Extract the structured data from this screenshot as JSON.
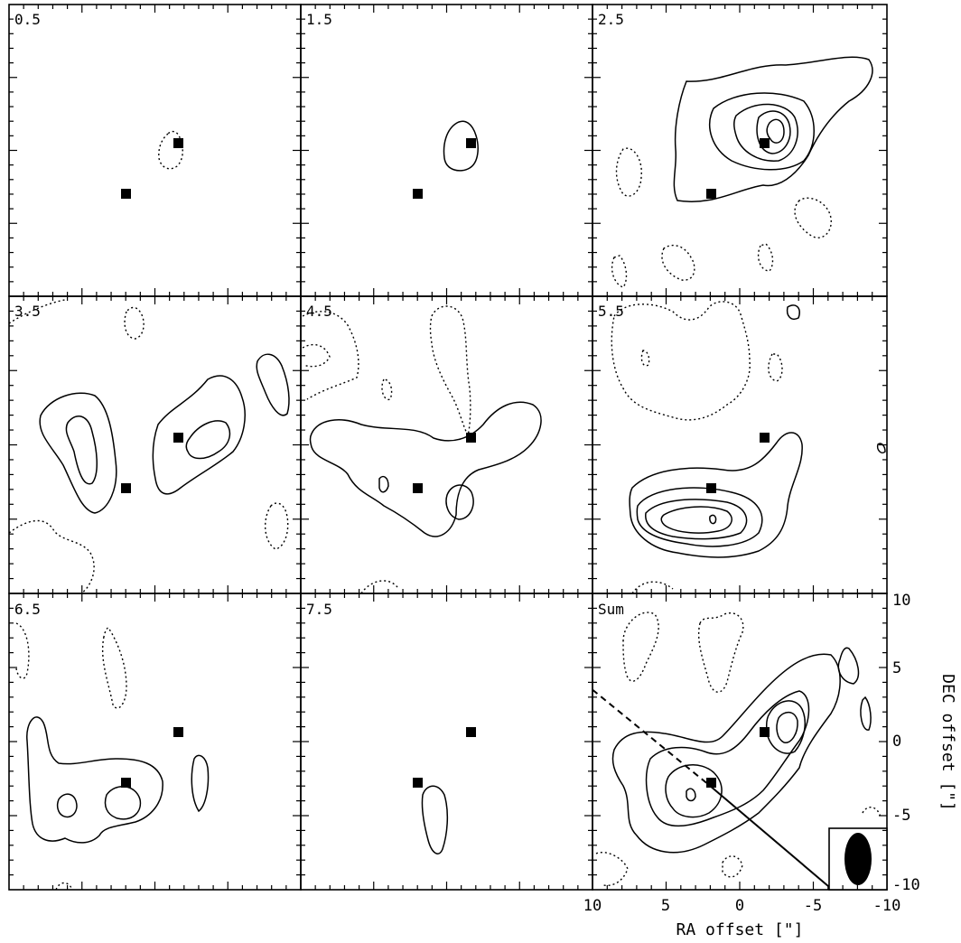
{
  "chart_data": {
    "type": "contour",
    "panels": [
      {
        "label": "0.5"
      },
      {
        "label": "1.5"
      },
      {
        "label": "2.5"
      },
      {
        "label": "3.5"
      },
      {
        "label": "4.5"
      },
      {
        "label": "5.5"
      },
      {
        "label": "6.5"
      },
      {
        "label": "7.5"
      },
      {
        "label": "Sum"
      }
    ],
    "xlabel": "RA offset [\"]",
    "ylabel": "DEC offset [\"]",
    "xlim": [
      10,
      -10
    ],
    "ylim": [
      -10,
      10
    ],
    "x_tick_labels": [
      "10",
      "5",
      "0",
      "-5",
      "-10"
    ],
    "y_tick_labels": [
      "10",
      "5",
      "0",
      "-5",
      "-10"
    ],
    "markers": [
      {
        "x": 2.0,
        "y": -3.0
      },
      {
        "x": -1.5,
        "y": 0.5
      }
    ],
    "cut_line": {
      "from": [
        10,
        3.5
      ],
      "to": [
        -6.3,
        -10
      ]
    },
    "beam": {
      "shape": "ellipse",
      "fill": "#000000"
    }
  }
}
